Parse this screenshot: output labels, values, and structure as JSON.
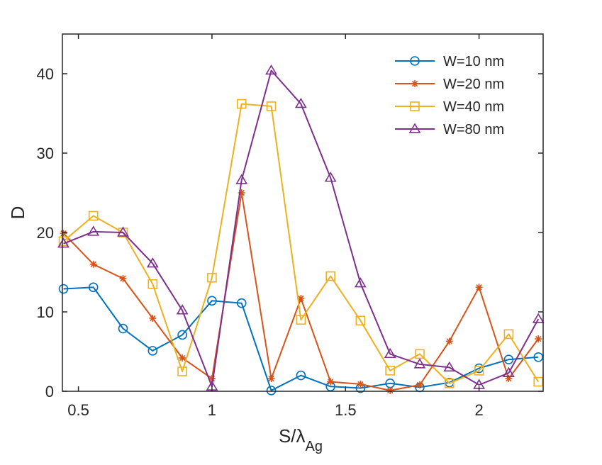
{
  "chart_data": {
    "type": "line",
    "title": "",
    "xlabel": "S/λ",
    "xlabel_subscript": "Ag",
    "ylabel": "D",
    "xlim": [
      0.44,
      2.24
    ],
    "ylim": [
      0,
      45
    ],
    "xticks": [
      0.5,
      1,
      1.5,
      2
    ],
    "xtick_labels": [
      "0.5",
      "1",
      "1.5",
      "2"
    ],
    "yticks": [
      0,
      10,
      20,
      30,
      40
    ],
    "ytick_labels": [
      "0",
      "10",
      "20",
      "30",
      "40"
    ],
    "grid": false,
    "legend_position": "top-right",
    "x": [
      0.444,
      0.556,
      0.667,
      0.778,
      0.889,
      1.0,
      1.111,
      1.222,
      1.333,
      1.444,
      1.556,
      1.667,
      1.778,
      1.889,
      2.0,
      2.111,
      2.222
    ],
    "series": [
      {
        "name": "W=10 nm",
        "color": "#0072BD",
        "marker": "circle",
        "values": [
          12.9,
          13.1,
          7.9,
          5.1,
          7.1,
          11.4,
          11.1,
          0.1,
          2.0,
          0.6,
          0.4,
          1.0,
          0.5,
          1.1,
          2.9,
          4.0,
          4.3
        ]
      },
      {
        "name": "W=20 nm",
        "color": "#D95319",
        "marker": "asterisk",
        "values": [
          19.9,
          16.0,
          14.2,
          9.2,
          4.2,
          1.6,
          25.0,
          1.6,
          11.7,
          1.2,
          0.9,
          0.1,
          0.8,
          6.3,
          13.1,
          1.6,
          6.6
        ]
      },
      {
        "name": "W=40 nm",
        "color": "#EDB120",
        "marker": "square",
        "values": [
          18.9,
          22.1,
          20.0,
          13.5,
          2.5,
          14.3,
          36.2,
          35.9,
          9.0,
          14.5,
          8.9,
          2.6,
          4.7,
          1.0,
          2.6,
          7.2,
          1.2
        ]
      },
      {
        "name": "W=80 nm",
        "color": "#7E2F8E",
        "marker": "triangle",
        "values": [
          18.6,
          20.1,
          20.0,
          16.1,
          10.2,
          0.6,
          26.6,
          40.4,
          36.2,
          26.9,
          13.6,
          4.7,
          3.4,
          3.0,
          0.8,
          2.3,
          9.1
        ]
      }
    ]
  }
}
